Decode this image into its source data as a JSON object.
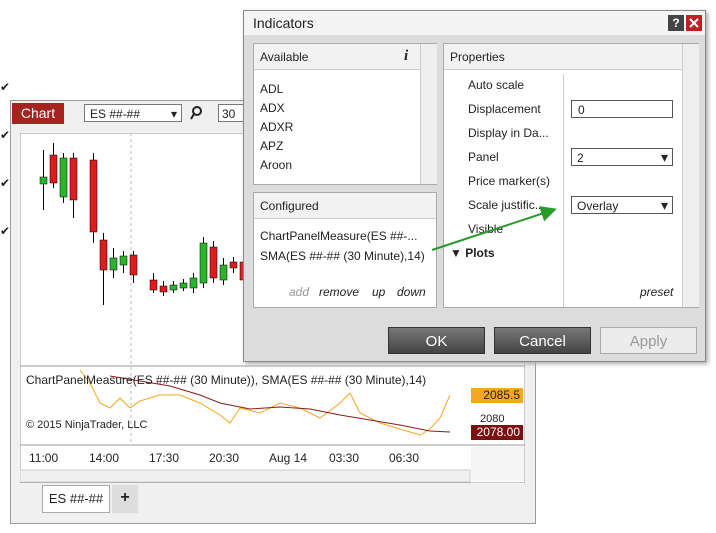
{
  "chart_window": {
    "tab": "Chart",
    "instrument": "ES ##-##",
    "interval": "30",
    "panel_label": "ChartPanelMeasure(ES ##-## (30 Minute)), SMA(ES ##-## (30 Minute),14)",
    "copyright": "© 2015 NinjaTrader, LLC",
    "price_labels": [
      "2085.5",
      "2080",
      "2078.00"
    ],
    "time_labels": [
      "11:00",
      "14:00",
      "17:30",
      "20:30",
      "Aug 14",
      "03:30",
      "06:30"
    ],
    "tab_label": "ES ##-##",
    "add_tab": "+"
  },
  "dialog": {
    "title": "Indicators",
    "help": "?",
    "available": {
      "header": "Available",
      "info": "i",
      "items": [
        "ADL",
        "ADX",
        "ADXR",
        "APZ",
        "Aroon"
      ]
    },
    "configured": {
      "header": "Configured",
      "items": [
        "ChartPanelMeasure(ES ##-...",
        "SMA(ES ##-## (30 Minute),14)"
      ],
      "actions": [
        "add",
        "remove",
        "up",
        "down"
      ]
    },
    "properties": {
      "header": "Properties",
      "rows": [
        {
          "label": "Auto scale",
          "checked": true
        },
        {
          "label": "Displacement",
          "input": "0"
        },
        {
          "label": "Display in Da...",
          "checked": true
        },
        {
          "label": "Panel",
          "select": "2"
        },
        {
          "label": "Price marker(s)",
          "checked": true
        },
        {
          "label": "Scale justific...",
          "select": "Overlay"
        },
        {
          "label": "Visible",
          "checked": true
        }
      ],
      "section": "Plots",
      "preset": "preset"
    },
    "buttons": [
      "OK",
      "Cancel",
      "Apply"
    ]
  }
}
